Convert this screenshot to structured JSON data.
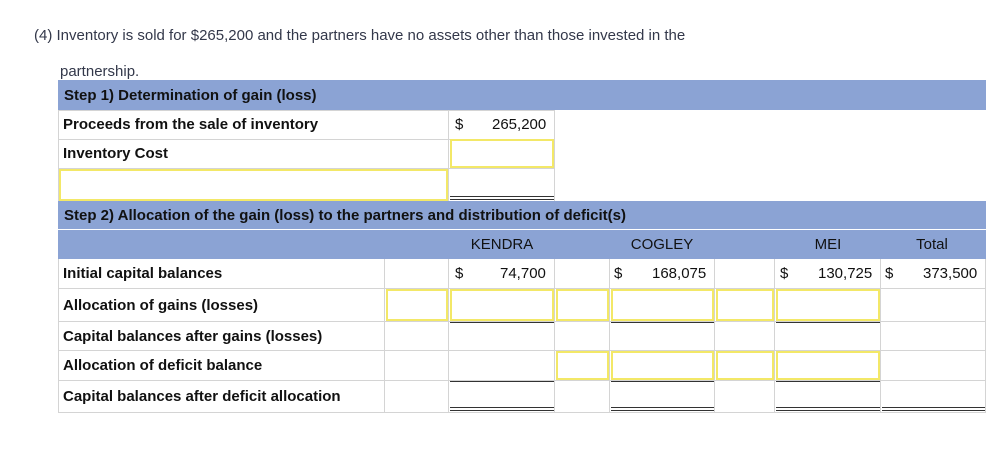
{
  "question": {
    "line1": "(4) Inventory is sold for $265,200 and the partners have no assets other than those invested in the",
    "line2": "partnership."
  },
  "step1": {
    "title": "Step 1) Determination of gain (loss)",
    "proceeds_label": "Proceeds from the sale of inventory",
    "proceeds_currency": "$",
    "proceeds_value": "265,200",
    "inventory_cost_label": "Inventory Cost",
    "inventory_cost_value": "",
    "gain_loss_label_value": ""
  },
  "step2": {
    "title": "Step 2) Allocation of the gain (loss) to the partners and distribution of deficit(s)",
    "columns": [
      "KENDRA",
      "COGLEY",
      "MEI",
      "Total"
    ],
    "rows": [
      {
        "label": "Initial capital balances",
        "kendra_currency": "$",
        "kendra": "74,700",
        "cogley_currency": "$",
        "cogley": "168,075",
        "mei_currency": "$",
        "mei": "130,725",
        "total_currency": "$",
        "total": "373,500"
      },
      {
        "label": "Allocation of gains (losses)"
      },
      {
        "label": "Capital balances after gains (losses)"
      },
      {
        "label": "Allocation of deficit balance"
      },
      {
        "label": "Capital balances after deficit allocation"
      }
    ]
  },
  "colors": {
    "header_bg": "#8ba3d4",
    "input_border": "#f3e867",
    "grid_line": "#d4d4d4"
  }
}
